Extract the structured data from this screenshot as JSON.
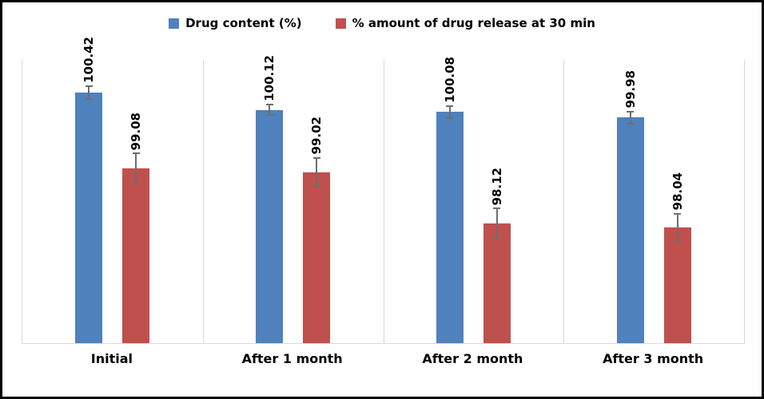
{
  "chart_data": {
    "type": "bar",
    "title": "",
    "xlabel": "",
    "ylabel": "",
    "categories": [
      "Initial",
      "After 1 month",
      "After 2 month",
      "After 3 month"
    ],
    "series": [
      {
        "name": "Drug content (%)",
        "color": "#4F81BD",
        "values": [
          100.42,
          100.12,
          100.08,
          99.98
        ],
        "errors": [
          0.13,
          0.11,
          0.12,
          0.12
        ]
      },
      {
        "name": "% amount of drug release at 30 min",
        "color": "#C0504D",
        "values": [
          99.08,
          99.02,
          98.12,
          98.04
        ],
        "errors": [
          0.28,
          0.27,
          0.27,
          0.26
        ]
      }
    ],
    "ylim": [
      96,
      101
    ],
    "grid": false,
    "legend_position": "top",
    "bar_value_labels_rotated": true,
    "error_bar_color": "#6E6E6E",
    "axis_line_color": "#D9D9D9",
    "text_color": "#000000",
    "frame_border_color": "#000000"
  }
}
